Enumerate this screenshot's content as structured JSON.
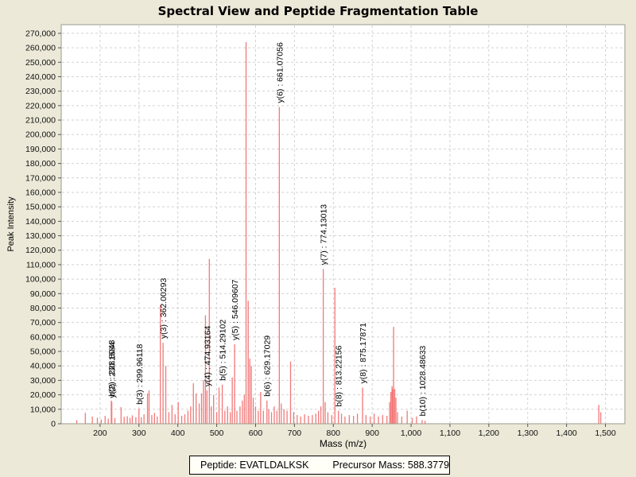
{
  "title": "Spectral View and Peptide Fragmentation Table",
  "footer": {
    "peptide": "Peptide: EVATLDALKSK",
    "precursor": "Precursor Mass: 588.3779"
  },
  "chart_data": {
    "type": "bar",
    "subtype": "mass-spectrum-stick-plot",
    "title": "Spectral View and Peptide Fragmentation Table",
    "xlabel": "Mass (m/z)",
    "ylabel": "Peak Intensity",
    "xlim": [
      100,
      1550
    ],
    "ylim": [
      0,
      276000
    ],
    "grid": "dashed-both-axes",
    "peak_color": "#f27979",
    "plot_bg": "#ffffff",
    "page_bg": "#ece9d8",
    "x_tick_values": [
      200,
      300,
      400,
      500,
      600,
      700,
      800,
      900,
      1000,
      1100,
      1200,
      1300,
      1400,
      1500
    ],
    "x_tick_labels": [
      "200",
      "300",
      "400",
      "500",
      "600",
      "700",
      "800",
      "900",
      "1,000",
      "1,100",
      "1,200",
      "1,300",
      "1,400",
      "1,500"
    ],
    "y_tick_values": [
      0,
      10000,
      20000,
      30000,
      40000,
      50000,
      60000,
      70000,
      80000,
      90000,
      100000,
      110000,
      120000,
      130000,
      140000,
      150000,
      160000,
      170000,
      180000,
      190000,
      200000,
      210000,
      220000,
      230000,
      240000,
      250000,
      260000,
      270000
    ],
    "y_tick_labels": [
      "0",
      "10,000",
      "20,000",
      "30,000",
      "40,000",
      "50,000",
      "60,000",
      "70,000",
      "80,000",
      "90,000",
      "100,000",
      "110,000",
      "120,000",
      "130,000",
      "140,000",
      "150,000",
      "160,000",
      "170,000",
      "180,000",
      "190,000",
      "200,000",
      "210,000",
      "220,000",
      "230,000",
      "240,000",
      "250,000",
      "260,000",
      "270,000"
    ],
    "annotations": [
      {
        "label": "b(2) : 228.8048",
        "mz": 228.8048,
        "intensity": 16000
      },
      {
        "label": "y(2) : 230.1584",
        "mz": 230.1584,
        "intensity": 15000
      },
      {
        "label": "b(3) : 299.96118",
        "mz": 299.96118,
        "intensity": 10500
      },
      {
        "label": "y(3) : 362.00293",
        "mz": 362.00293,
        "intensity": 56000
      },
      {
        "label": "y(4) : 474.93164",
        "mz": 474.93164,
        "intensity": 23000
      },
      {
        "label": "b(5) : 514.29102",
        "mz": 514.29102,
        "intensity": 27000
      },
      {
        "label": "y(5) : 546.09607",
        "mz": 546.09607,
        "intensity": 55000
      },
      {
        "label": "b(6) : 629.17029",
        "mz": 629.17029,
        "intensity": 16000
      },
      {
        "label": "y(6) : 661.07056",
        "mz": 661.07056,
        "intensity": 219000
      },
      {
        "label": "y(7) : 774.13013",
        "mz": 774.13013,
        "intensity": 107000
      },
      {
        "label": "b(8) : 813.22156",
        "mz": 813.22156,
        "intensity": 9000
      },
      {
        "label": "y(8) : 875.17871",
        "mz": 875.17871,
        "intensity": 25000
      },
      {
        "label": "b(10) : 1028.48633",
        "mz": 1028.48633,
        "intensity": 2500
      }
    ],
    "peaks": [
      [
        140,
        2500
      ],
      [
        162,
        7500
      ],
      [
        180,
        5000
      ],
      [
        193,
        4200
      ],
      [
        203,
        3000
      ],
      [
        213,
        5500
      ],
      [
        221,
        3500
      ],
      [
        228.8048,
        16000
      ],
      [
        230.1584,
        15000
      ],
      [
        238,
        4000
      ],
      [
        254,
        11500
      ],
      [
        262,
        4800
      ],
      [
        270,
        5200
      ],
      [
        277,
        4000
      ],
      [
        283,
        5800
      ],
      [
        292,
        4500
      ],
      [
        299.96118,
        10500
      ],
      [
        306,
        4500
      ],
      [
        313,
        6500
      ],
      [
        322,
        21000
      ],
      [
        326,
        23000
      ],
      [
        333,
        6000
      ],
      [
        340,
        7500
      ],
      [
        347,
        5000
      ],
      [
        355,
        82000
      ],
      [
        362.00293,
        56000
      ],
      [
        369,
        40000
      ],
      [
        377,
        8000
      ],
      [
        385,
        13000
      ],
      [
        393,
        6500
      ],
      [
        401,
        15000
      ],
      [
        410,
        5500
      ],
      [
        418,
        6500
      ],
      [
        426,
        9000
      ],
      [
        433,
        12000
      ],
      [
        440,
        28000
      ],
      [
        447,
        21000
      ],
      [
        455,
        14000
      ],
      [
        461,
        21000
      ],
      [
        466,
        30000
      ],
      [
        471,
        75000
      ],
      [
        474.93164,
        23000
      ],
      [
        481,
        114000
      ],
      [
        486,
        12000
      ],
      [
        492,
        20000
      ],
      [
        500,
        8000
      ],
      [
        506,
        25000
      ],
      [
        514.29102,
        27000
      ],
      [
        521,
        9000
      ],
      [
        528,
        12000
      ],
      [
        535,
        8000
      ],
      [
        540,
        32000
      ],
      [
        546.09607,
        55000
      ],
      [
        552,
        9000
      ],
      [
        560,
        12000
      ],
      [
        566,
        16000
      ],
      [
        571,
        20000
      ],
      [
        575.5,
        264000
      ],
      [
        581,
        85000
      ],
      [
        585,
        45000
      ],
      [
        589,
        40000
      ],
      [
        594,
        18000
      ],
      [
        600,
        12000
      ],
      [
        607,
        9000
      ],
      [
        613,
        22000
      ],
      [
        620,
        9000
      ],
      [
        629.17029,
        16000
      ],
      [
        634,
        10000
      ],
      [
        641,
        8000
      ],
      [
        648,
        12000
      ],
      [
        655,
        9000
      ],
      [
        661.07056,
        219000
      ],
      [
        666,
        14000
      ],
      [
        673,
        10000
      ],
      [
        681,
        9000
      ],
      [
        690,
        43000
      ],
      [
        698,
        8000
      ],
      [
        707,
        6000
      ],
      [
        716,
        5000
      ],
      [
        726,
        6500
      ],
      [
        736,
        5500
      ],
      [
        746,
        6000
      ],
      [
        755,
        7000
      ],
      [
        762,
        9000
      ],
      [
        768,
        12000
      ],
      [
        774.13013,
        107000
      ],
      [
        779,
        15000
      ],
      [
        786,
        8000
      ],
      [
        796,
        6000
      ],
      [
        804,
        94000
      ],
      [
        813.22156,
        9000
      ],
      [
        821,
        7000
      ],
      [
        830,
        5000
      ],
      [
        841,
        6000
      ],
      [
        852,
        5500
      ],
      [
        862,
        7000
      ],
      [
        875.17871,
        25000
      ],
      [
        884,
        6000
      ],
      [
        895,
        5000
      ],
      [
        905,
        7000
      ],
      [
        916,
        5000
      ],
      [
        927,
        6000
      ],
      [
        938,
        5500
      ],
      [
        945,
        15000
      ],
      [
        948,
        22000
      ],
      [
        951,
        26000
      ],
      [
        953,
        24000
      ],
      [
        955,
        67000
      ],
      [
        958,
        24000
      ],
      [
        961,
        18000
      ],
      [
        965,
        8000
      ],
      [
        976,
        5000
      ],
      [
        990,
        9000
      ],
      [
        1003,
        4000
      ],
      [
        1014,
        5000
      ],
      [
        1028.48633,
        2500
      ],
      [
        1036,
        2000
      ],
      [
        1483,
        13000
      ],
      [
        1488,
        8000
      ]
    ]
  }
}
